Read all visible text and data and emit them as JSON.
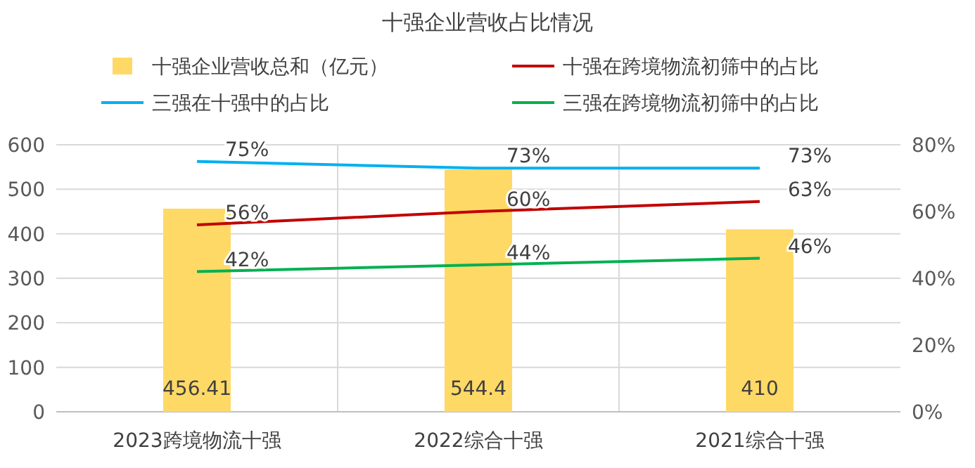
{
  "chart_data": {
    "type": "bar",
    "title": "十强企业营收占比情况",
    "categories": [
      "2023跨境物流十强",
      "2022综合十强",
      "2021综合十强"
    ],
    "series": [
      {
        "name": "十强企业营收总和（亿元）",
        "color": "#ffd966",
        "values": [
          456.41,
          544.4,
          410
        ],
        "value_labels": [
          "456.41",
          "544.4",
          "410"
        ]
      },
      {
        "name": "十强在跨境物流初筛中的占比",
        "type": "line",
        "axis": "y2",
        "color": "#c00000",
        "values": [
          56,
          60,
          63
        ],
        "value_labels": [
          "56%",
          "60%",
          "63%"
        ]
      },
      {
        "name": "三强在十强中的占比",
        "type": "line",
        "axis": "y2",
        "color": "#00b0f0",
        "values": [
          75,
          73,
          73
        ],
        "value_labels": [
          "75%",
          "73%",
          "73%"
        ]
      },
      {
        "name": "三强在跨境物流初筛中的占比",
        "type": "line",
        "axis": "y2",
        "color": "#00b050",
        "values": [
          42,
          44,
          46
        ],
        "value_labels": [
          "42%",
          "44%",
          "46%"
        ]
      }
    ],
    "ylim": [
      0,
      600
    ],
    "yticks": [
      0,
      100,
      200,
      300,
      400,
      500,
      600
    ],
    "y2lim": [
      0,
      80
    ],
    "y2ticks": [
      {
        "value": 0,
        "label": "0%"
      },
      {
        "value": 20,
        "label": "20%"
      },
      {
        "value": 40,
        "label": "40%"
      },
      {
        "value": 60,
        "label": "60%"
      },
      {
        "value": 80,
        "label": "80%"
      }
    ],
    "grid": true,
    "legend": "top",
    "marker": "none",
    "line_style": "solid"
  }
}
